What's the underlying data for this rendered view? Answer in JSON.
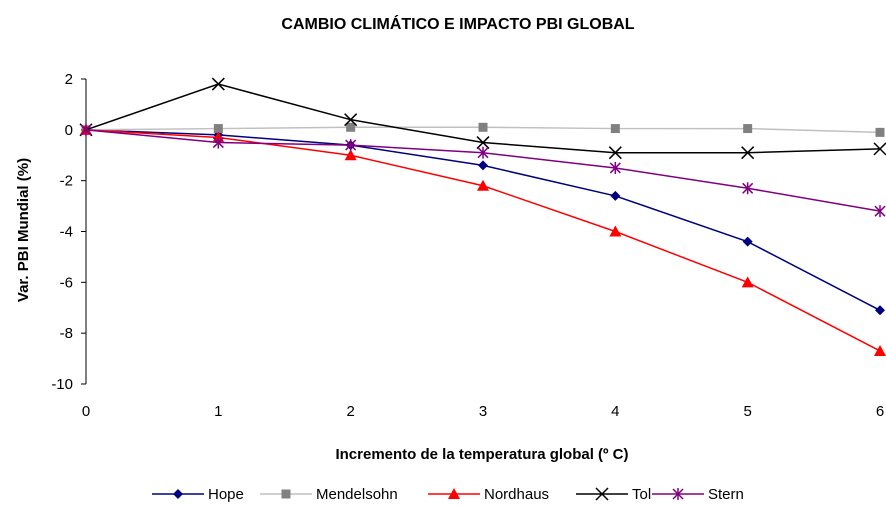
{
  "chart_data": {
    "type": "line",
    "title": "CAMBIO CLIMÁTICO E IMPACTO PBI GLOBAL",
    "xlabel": "Incremento de la temperatura global (º C)",
    "ylabel": "Var. PBI Mundial (%)",
    "x": [
      0,
      1,
      2,
      3,
      4,
      5,
      6
    ],
    "x_ticks": [
      "0",
      "1",
      "2",
      "3",
      "4",
      "5",
      "6"
    ],
    "ylim": [
      -10,
      2
    ],
    "y_ticks": [
      "2",
      "0",
      "-2",
      "-4",
      "-6",
      "-8",
      "-10"
    ],
    "grid": false,
    "legend_position": "bottom",
    "series": [
      {
        "name": "Hope",
        "color": "#000080",
        "marker": "diamond",
        "values": [
          0,
          -0.2,
          -0.6,
          -1.4,
          -2.6,
          -4.4,
          -7.1
        ]
      },
      {
        "name": "Mendelsohn",
        "color": "#c0c0c0",
        "marker_color": "#808080",
        "marker": "square",
        "values": [
          0,
          0.05,
          0.1,
          0.1,
          0.05,
          0.05,
          -0.1
        ]
      },
      {
        "name": "Nordhaus",
        "color": "#ff0000",
        "marker": "triangle",
        "values": [
          0,
          -0.3,
          -1.0,
          -2.2,
          -4.0,
          -6.0,
          -8.7
        ]
      },
      {
        "name": "Tol",
        "color": "#000000",
        "marker": "x",
        "values": [
          0,
          1.8,
          0.4,
          -0.5,
          -0.9,
          -0.9,
          -0.75
        ]
      },
      {
        "name": "Stern",
        "color": "#800080",
        "marker": "star",
        "values": [
          0,
          -0.5,
          -0.6,
          -0.9,
          -1.5,
          -2.3,
          -3.2
        ]
      }
    ]
  }
}
